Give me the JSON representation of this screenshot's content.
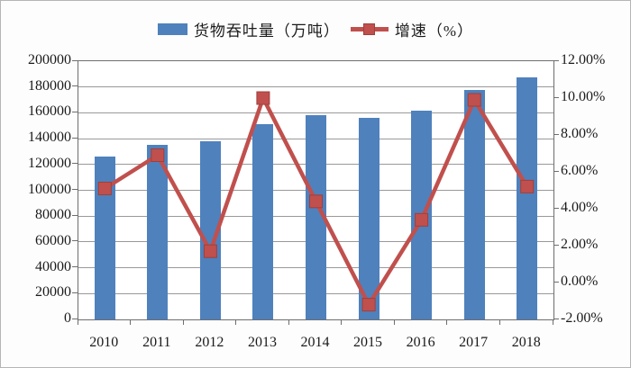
{
  "figure": {
    "background": "#ffffff",
    "border_color": "#b5b5b5"
  },
  "chart_data": {
    "type": "bar+line",
    "title": "",
    "categories": [
      "2010",
      "2011",
      "2012",
      "2013",
      "2014",
      "2015",
      "2016",
      "2017",
      "2018"
    ],
    "series": [
      {
        "name": "货物吞吐量（万吨）",
        "type": "bar",
        "axis": "left",
        "color": "#4f81bd",
        "values": [
          126000,
          135000,
          138000,
          151000,
          158000,
          156000,
          162000,
          178000,
          187500
        ]
      },
      {
        "name": "增速（%）",
        "type": "line",
        "axis": "right",
        "color": "#c0504d",
        "marker": "square",
        "values": [
          5.1,
          6.9,
          1.7,
          10.0,
          4.4,
          -1.2,
          3.4,
          9.9,
          5.2
        ]
      }
    ],
    "left_axis": {
      "min": 0,
      "max": 200000,
      "step": 20000,
      "tick_labels": [
        "0",
        "20000",
        "40000",
        "60000",
        "80000",
        "100000",
        "120000",
        "140000",
        "160000",
        "180000",
        "200000"
      ]
    },
    "right_axis": {
      "min": -2,
      "max": 12,
      "step": 2,
      "tick_labels": [
        "-2.00%",
        "0.00%",
        "2.00%",
        "4.00%",
        "6.00%",
        "8.00%",
        "10.00%",
        "12.00%"
      ]
    },
    "legend_position": "top",
    "grid": true,
    "gridline_color": "#999999",
    "axis_line_color": "#6e6e6e"
  }
}
